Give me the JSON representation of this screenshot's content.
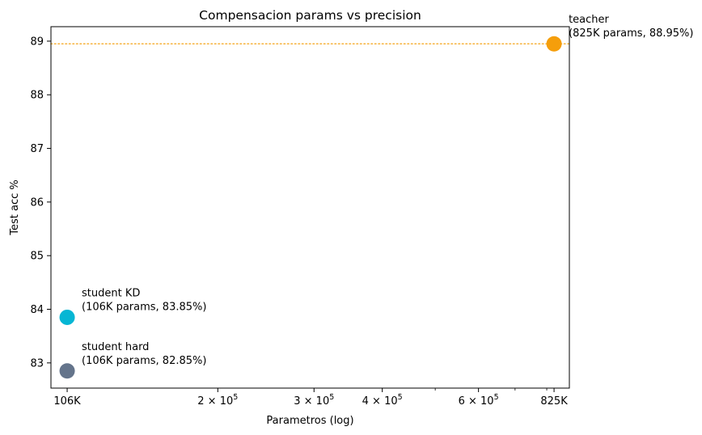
{
  "chart_data": {
    "type": "scatter",
    "title": "Compensacion params vs precision",
    "xlabel": "Parametros (log)",
    "ylabel": "Test acc %",
    "xscale": "log",
    "xlim": [
      99000,
      880000
    ],
    "ylim": [
      82.53,
      89.27
    ],
    "grid": false,
    "y_ticks": [
      {
        "value": 83,
        "label": "83"
      },
      {
        "value": 84,
        "label": "84"
      },
      {
        "value": 85,
        "label": "85"
      },
      {
        "value": 86,
        "label": "86"
      },
      {
        "value": 87,
        "label": "87"
      },
      {
        "value": 88,
        "label": "88"
      },
      {
        "value": 89,
        "label": "89"
      }
    ],
    "x_ticks": [
      {
        "value": 106000,
        "label": "106K",
        "kind": "plain"
      },
      {
        "value": 200000,
        "base": "2",
        "exp": "5",
        "kind": "sci"
      },
      {
        "value": 300000,
        "base": "3",
        "exp": "5",
        "kind": "sci"
      },
      {
        "value": 400000,
        "base": "4",
        "exp": "5",
        "kind": "sci"
      },
      {
        "value": 600000,
        "base": "6",
        "exp": "5",
        "kind": "sci"
      },
      {
        "value": 825000,
        "label": "825K",
        "kind": "plain"
      }
    ],
    "x_minor_ticks": [
      500000,
      700000,
      800000
    ],
    "points": [
      {
        "name": "teacher",
        "x": 825000,
        "y": 88.95,
        "color": "#f59e0b",
        "label_line1": "teacher",
        "label_line2": "(825K params, 88.95%)"
      },
      {
        "name": "student KD",
        "x": 106000,
        "y": 83.85,
        "color": "#06b6d4",
        "label_line1": "student KD",
        "label_line2": "(106K params, 83.85%)"
      },
      {
        "name": "student hard",
        "x": 106000,
        "y": 82.85,
        "color": "#64748b",
        "label_line1": "student hard",
        "label_line2": "(106K params, 82.85%)"
      }
    ],
    "reference_line": {
      "y": 88.95,
      "color": "#f59e0b",
      "style": "dotted"
    }
  }
}
